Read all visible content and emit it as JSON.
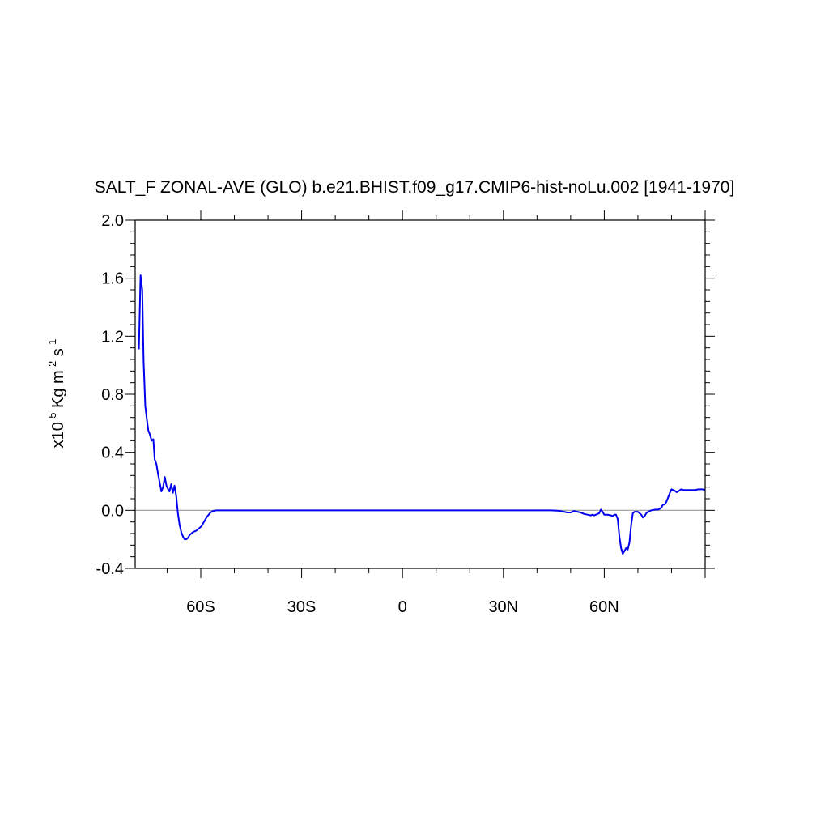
{
  "chart_data": {
    "type": "line",
    "title": "SALT_F ZONAL-AVE (GLO) b.e21.BHIST.f09_g17.CMIP6-hist-noLu.002 [1941-1970]",
    "ylabel": {
      "prefix": "x10",
      "exp1": "-5",
      "unit1": " Kg m",
      "exp2": "-2",
      "unit2": " s",
      "exp3": "-1"
    },
    "xlim": [
      -79.5,
      90
    ],
    "ylim": [
      -0.4,
      2.0
    ],
    "x_ticks": [
      {
        "value": -60,
        "label": "60S"
      },
      {
        "value": -30,
        "label": "30S"
      },
      {
        "value": 0,
        "label": "0"
      },
      {
        "value": 30,
        "label": "30N"
      },
      {
        "value": 60,
        "label": "60N"
      }
    ],
    "y_ticks": [
      {
        "value": -0.4,
        "label": "-0.4"
      },
      {
        "value": 0.0,
        "label": "0.0"
      },
      {
        "value": 0.4,
        "label": "0.4"
      },
      {
        "value": 0.8,
        "label": "0.8"
      },
      {
        "value": 1.2,
        "label": "1.2"
      },
      {
        "value": 1.6,
        "label": "1.6"
      },
      {
        "value": 2.0,
        "label": "2.0"
      }
    ],
    "reference_line": 0.0,
    "colors": {
      "line": "#0000ee",
      "reference": "#999999",
      "axis": "#000000"
    },
    "series": [
      {
        "x": [
          -78.4,
          -77.9,
          -77.4,
          -77.0,
          -76.5,
          -76.1,
          -75.6,
          -75.1,
          -74.6,
          -74.1,
          -73.7,
          -73.2,
          -72.7,
          -72.2,
          -71.7,
          -71.2,
          -70.7,
          -70.2,
          -69.8,
          -69.3,
          -68.8,
          -68.3,
          -67.8,
          -67.3,
          -66.8,
          -66.3,
          -65.8,
          -65.3,
          -64.8,
          -64.3,
          -63.8,
          -63.3,
          -62.8,
          -62.3,
          -61.8,
          -61.3,
          -60.8,
          -60.3,
          -59.8,
          -59.3,
          -58.8,
          -58.3,
          -57.8,
          -57.3,
          -56.8,
          -56.3,
          -55.8,
          -55.3,
          -54.8,
          -54.3,
          -53.8,
          -53.3,
          -52.8,
          -52.3,
          -51.8,
          -51.3,
          -50.0,
          -40.0,
          -30.0,
          -20.0,
          -10.0,
          0.0,
          10.0,
          20.0,
          30.0,
          40.0,
          44.0,
          46.0,
          47.0,
          48.0,
          49.0,
          50.0,
          51.0,
          52.0,
          53.0,
          54.0,
          55.0,
          56.0,
          56.5,
          57.0,
          58.0,
          58.5,
          59.0,
          59.5,
          60.0,
          61.0,
          62.0,
          62.5,
          63.0,
          63.5,
          64.0,
          64.5,
          65.0,
          65.5,
          66.0,
          66.5,
          67.0,
          67.5,
          68.0,
          68.5,
          69.0,
          70.0,
          71.0,
          71.5,
          72.0,
          72.5,
          73.0,
          74.0,
          75.0,
          76.0,
          76.5,
          77.0,
          77.5,
          78.0,
          78.5,
          79.0,
          79.5,
          80.0,
          80.5,
          81.0,
          81.5,
          82.0,
          82.5,
          83.0,
          83.5,
          84.0,
          85.0,
          86.0,
          87.0,
          88.0,
          89.0,
          89.9
        ],
        "y": [
          1.11,
          1.62,
          1.52,
          1.03,
          0.72,
          0.64,
          0.55,
          0.52,
          0.48,
          0.49,
          0.35,
          0.32,
          0.25,
          0.19,
          0.13,
          0.16,
          0.23,
          0.17,
          0.15,
          0.13,
          0.18,
          0.12,
          0.17,
          0.1,
          -0.02,
          -0.1,
          -0.15,
          -0.18,
          -0.2,
          -0.2,
          -0.19,
          -0.17,
          -0.16,
          -0.15,
          -0.145,
          -0.14,
          -0.13,
          -0.12,
          -0.11,
          -0.09,
          -0.07,
          -0.05,
          -0.035,
          -0.02,
          -0.01,
          -0.005,
          -0.002,
          0.0,
          0.0,
          0.0,
          0.0,
          0.0,
          0.0,
          0.0,
          0.0,
          0.0,
          0.0,
          0.0,
          0.0,
          0.0,
          0.0,
          0.0,
          0.0,
          0.0,
          0.0,
          0.0,
          0.0,
          -0.002,
          -0.005,
          -0.01,
          -0.015,
          -0.015,
          -0.005,
          -0.01,
          -0.015,
          -0.025,
          -0.03,
          -0.035,
          -0.03,
          -0.035,
          -0.025,
          -0.02,
          0.005,
          -0.01,
          -0.03,
          -0.03,
          -0.035,
          -0.04,
          -0.03,
          -0.03,
          -0.06,
          -0.18,
          -0.26,
          -0.3,
          -0.28,
          -0.26,
          -0.27,
          -0.22,
          -0.1,
          -0.02,
          -0.01,
          -0.01,
          -0.03,
          -0.05,
          -0.04,
          -0.02,
          -0.01,
          0.0,
          0.005,
          0.005,
          0.01,
          0.02,
          0.04,
          0.04,
          0.06,
          0.09,
          0.12,
          0.145,
          0.14,
          0.135,
          0.125,
          0.13,
          0.14,
          0.145,
          0.14,
          0.14,
          0.14,
          0.14,
          0.14,
          0.145,
          0.145,
          0.142
        ]
      }
    ]
  }
}
